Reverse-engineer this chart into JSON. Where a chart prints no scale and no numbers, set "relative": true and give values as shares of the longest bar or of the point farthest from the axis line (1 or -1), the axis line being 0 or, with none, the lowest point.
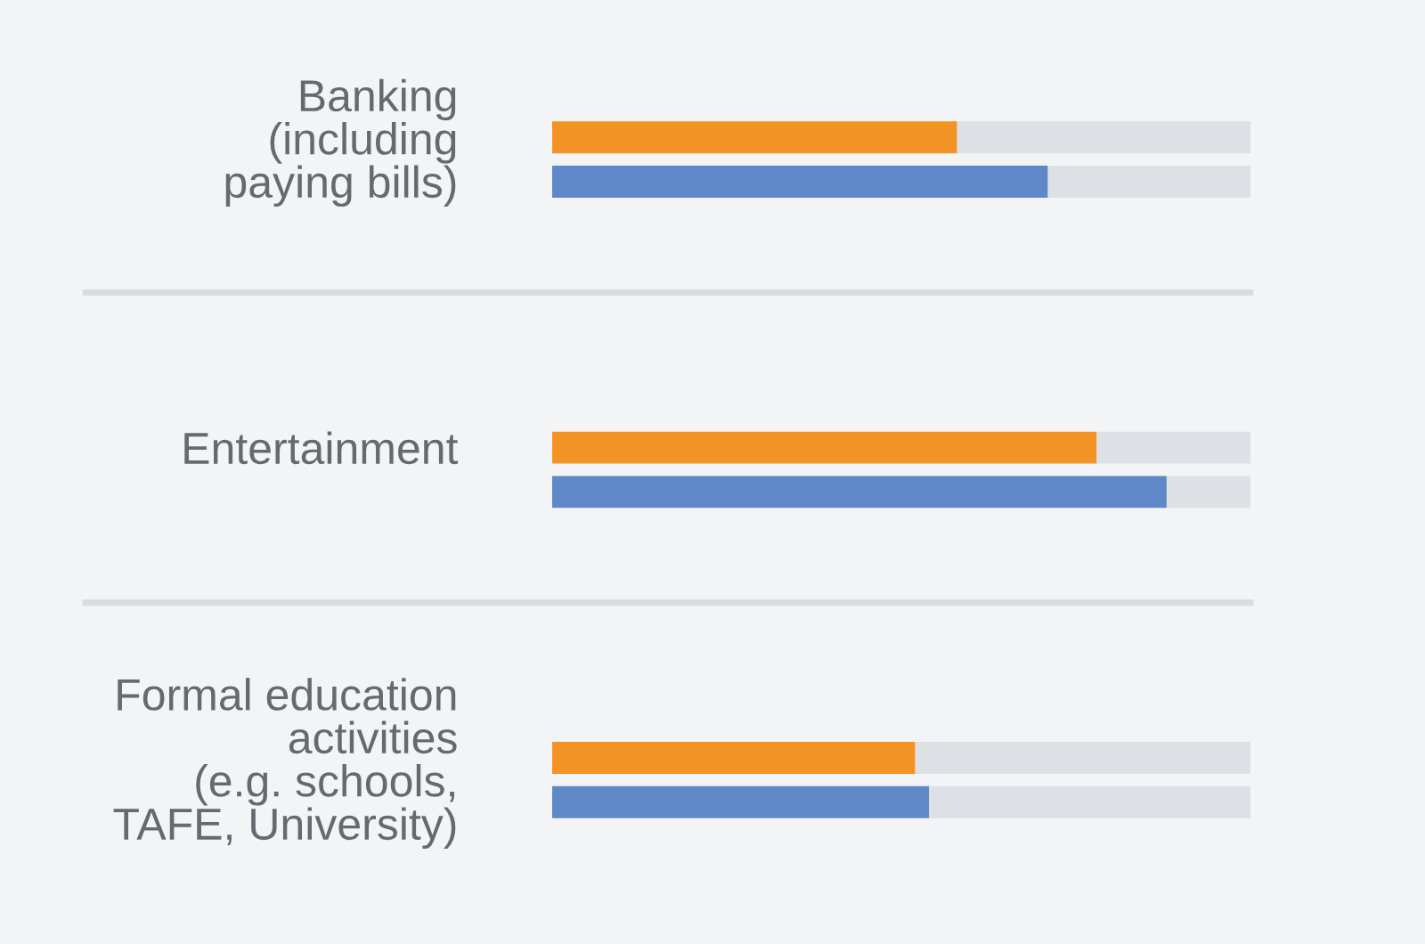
{
  "chart_data": {
    "type": "bar",
    "orientation": "horizontal",
    "stacked": true,
    "relative": true,
    "grid": false,
    "legend": false,
    "categories": [
      "Banking\n(including\npaying bills)",
      null,
      null,
      null,
      null,
      null,
      null,
      "Entertainment",
      null,
      null,
      null,
      null,
      null,
      null,
      "Formal education\nactivities\n(e.g. schools,\nTAFE, University)",
      null
    ],
    "series": [
      {
        "colors": [
          "#f39325",
          "#5f88c8",
          null,
          null,
          null,
          null,
          null,
          "#f39325",
          "#5f88c8",
          null,
          null,
          null,
          null,
          null,
          "#f39325",
          "#5f88c8"
        ],
        "values": [
          0.58,
          0.71,
          null,
          null,
          null,
          null,
          null,
          0.78,
          0.88,
          null,
          null,
          null,
          null,
          null,
          0.52,
          0.54
        ]
      },
      {
        "color": "#dde1e6",
        "values": [
          0.42,
          0.29,
          null,
          null,
          null,
          null,
          null,
          0.22,
          0.12,
          null,
          null,
          null,
          null,
          null,
          0.48,
          0.46
        ]
      }
    ]
  }
}
